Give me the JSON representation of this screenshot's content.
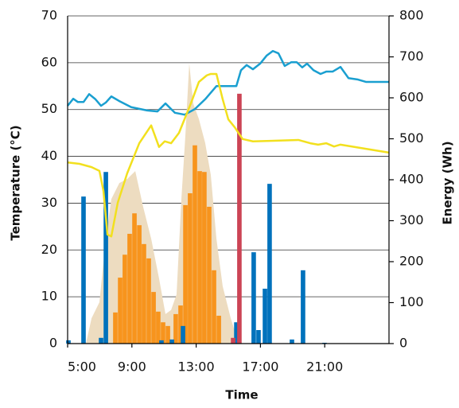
{
  "chart_data": {
    "type": "combo",
    "x_label": "Time",
    "y_label": "Temperature (°C)",
    "y2_label": "Energy (Wh)",
    "xlim": [
      5,
      25
    ],
    "xticks": [
      {
        "value": 5,
        "label": "5:00"
      },
      {
        "value": 9,
        "label": "9:00"
      },
      {
        "value": 13,
        "label": "13:00"
      },
      {
        "value": 17,
        "label": "17:00"
      },
      {
        "value": 21,
        "label": "21:00"
      }
    ],
    "ylim": [
      0,
      70
    ],
    "yticks": [
      0,
      10,
      20,
      30,
      40,
      50,
      60,
      70
    ],
    "y2lim": [
      0,
      800
    ],
    "y2ticks": [
      0,
      100,
      200,
      300,
      400,
      500,
      600,
      700,
      800
    ],
    "grid": true,
    "series": [
      {
        "type": "area",
        "axis": "y2",
        "color": "#eddcc0",
        "x": [
          6.14,
          6.49,
          6.98,
          7.38,
          7.72,
          8.22,
          8.71,
          9.21,
          9.7,
          10.2,
          10.69,
          11.09,
          11.44,
          11.78,
          12.08,
          12.33,
          12.57,
          12.82,
          13.17,
          13.56,
          13.91,
          14.26,
          14.65,
          15.15,
          15.64
        ],
        "values": [
          0,
          62,
          101,
          256,
          353,
          392,
          402,
          421,
          334,
          256,
          159,
          72,
          82,
          120,
          353,
          509,
          684,
          586,
          548,
          490,
          412,
          256,
          140,
          62,
          0
        ]
      },
      {
        "type": "bar",
        "axis": "y2",
        "color": "#f7941d",
        "x": [
          7.97,
          8.27,
          8.56,
          8.86,
          9.16,
          9.46,
          9.75,
          10.05,
          10.35,
          10.64,
          10.94,
          11.24,
          11.73,
          12.03,
          12.33,
          12.62,
          12.92,
          13.22,
          13.51,
          13.81,
          14.11,
          14.41
        ],
        "values": [
          76,
          161,
          217,
          268,
          318,
          289,
          243,
          208,
          126,
          78,
          52,
          43,
          72,
          93,
          338,
          367,
          484,
          421,
          419,
          334,
          179,
          68
        ]
      },
      {
        "type": "bar",
        "axis": "y2",
        "color": "#0072bc",
        "x": [
          5.05,
          5.99,
          7.08,
          7.38,
          10.84,
          11.49,
          12.18,
          15.5,
          16.58,
          16.88,
          17.28,
          17.57,
          18.96,
          19.65,
          20.99
        ],
        "values": [
          8,
          359,
          14,
          419,
          8,
          10,
          43,
          52,
          223,
          33,
          134,
          390,
          10,
          179,
          2
        ]
      },
      {
        "type": "bar",
        "axis": "y2",
        "color": "#cc4455",
        "x": [
          15.3,
          15.69
        ],
        "values": [
          14,
          610
        ]
      },
      {
        "type": "line",
        "axis": "y",
        "color": "#1a9fd0",
        "x": [
          5,
          5.35,
          5.64,
          5.99,
          6.34,
          6.73,
          7.08,
          7.38,
          7.72,
          8.22,
          8.96,
          9.95,
          10.59,
          11.09,
          11.68,
          12.28,
          12.92,
          13.56,
          14.26,
          14.9,
          15.5,
          15.79,
          16.14,
          16.53,
          16.98,
          17.38,
          17.77,
          18.12,
          18.51,
          18.91,
          19.26,
          19.6,
          19.9,
          20.3,
          20.74,
          21.09,
          21.49,
          21.98,
          22.48,
          23.07,
          23.56,
          25
        ],
        "values": [
          50.8,
          52.3,
          51.6,
          51.6,
          53.3,
          52.2,
          50.8,
          51.5,
          52.8,
          51.8,
          50.5,
          49.8,
          49.6,
          51.3,
          49.3,
          48.9,
          50.1,
          52.2,
          55,
          55,
          55,
          58.4,
          59.5,
          58.6,
          59.8,
          61.5,
          62.5,
          62,
          59.3,
          60.1,
          60.1,
          59,
          59.8,
          58.4,
          57.6,
          58.1,
          58.1,
          59.1,
          56.7,
          56.4,
          55.9,
          55.9
        ]
      },
      {
        "type": "line",
        "axis": "y",
        "color": "#f2e01e",
        "x": [
          5,
          5.74,
          6.49,
          6.98,
          7.23,
          7.48,
          7.72,
          8.12,
          8.71,
          9.46,
          10.2,
          10.69,
          11.04,
          11.44,
          11.93,
          12.67,
          13.17,
          13.66,
          13.91,
          14.26,
          14.65,
          15,
          15.4,
          15.89,
          16.53,
          17.62,
          19.36,
          20.1,
          20.59,
          21.09,
          21.58,
          21.98,
          25
        ],
        "values": [
          38.7,
          38.4,
          37.7,
          36.9,
          32.6,
          23.3,
          22.9,
          30.1,
          36.4,
          42.8,
          46.6,
          42,
          43.2,
          42.8,
          45,
          51.3,
          55.9,
          57.3,
          57.6,
          57.6,
          52.2,
          47.9,
          46.2,
          43.7,
          43.2,
          43.3,
          43.5,
          42.8,
          42.5,
          42.8,
          42.1,
          42.5,
          40.8
        ]
      }
    ]
  }
}
